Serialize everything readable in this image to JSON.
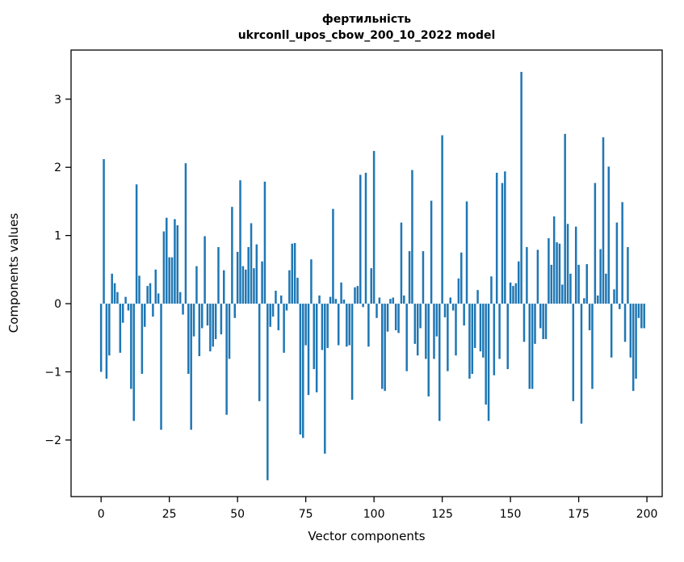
{
  "figure": {
    "title_line1": "фертильність",
    "title_line2": "ukrconll_upos_cbow_200_10_2022 model",
    "xlabel": "Vector components",
    "ylabel": "Components values"
  },
  "chart_data": {
    "type": "bar",
    "title": "фертильність\nukrconll_upos_cbow_200_10_2022 model",
    "xlabel": "Vector components",
    "ylabel": "Components values",
    "bar_color": "#1f77b4",
    "axis_color": "#000000",
    "background": "#ffffff",
    "legend": "none",
    "grid": false,
    "x_start_index": 0,
    "x_ticks": [
      0,
      25,
      50,
      75,
      100,
      125,
      150,
      175,
      200
    ],
    "y_ticks": [
      -2,
      -1,
      0,
      1,
      2,
      3
    ],
    "xlim": [
      -11,
      205.6
    ],
    "ylim": [
      -2.83,
      3.72
    ],
    "values": [
      -1.0,
      2.12,
      -1.1,
      -0.76,
      0.44,
      0.3,
      0.17,
      -0.72,
      -0.28,
      0.1,
      -0.1,
      -1.25,
      -1.72,
      1.75,
      0.41,
      -1.03,
      -0.34,
      0.26,
      0.3,
      -0.19,
      0.5,
      0.15,
      -1.85,
      1.06,
      1.26,
      0.68,
      0.68,
      1.24,
      1.15,
      0.17,
      -0.16,
      2.06,
      -1.03,
      -1.85,
      -0.48,
      0.55,
      -0.77,
      -0.36,
      0.99,
      -0.32,
      -0.7,
      -0.63,
      -0.52,
      0.83,
      -0.45,
      0.49,
      -1.63,
      -0.81,
      1.42,
      -0.21,
      0.76,
      1.81,
      0.55,
      0.5,
      0.83,
      1.18,
      0.52,
      0.87,
      -1.43,
      0.62,
      1.79,
      -2.59,
      -0.34,
      -0.19,
      0.19,
      -0.39,
      0.12,
      -0.72,
      -0.1,
      0.49,
      0.88,
      0.89,
      0.38,
      -1.92,
      -1.97,
      -0.61,
      -1.34,
      0.65,
      -0.96,
      -1.3,
      0.12,
      -0.68,
      -2.2,
      -0.65,
      0.1,
      1.39,
      0.07,
      -0.61,
      0.31,
      0.06,
      -0.63,
      -0.61,
      -1.41,
      0.24,
      0.26,
      1.89,
      -0.05,
      1.92,
      -0.63,
      0.52,
      2.24,
      -0.21,
      0.09,
      -1.25,
      -1.28,
      -0.41,
      0.07,
      0.09,
      -0.39,
      -0.43,
      1.19,
      0.12,
      -0.99,
      0.77,
      1.96,
      -0.59,
      -0.76,
      -0.36,
      0.77,
      -0.81,
      -1.36,
      1.51,
      -0.81,
      -0.48,
      -1.72,
      2.47,
      -0.2,
      -0.99,
      0.09,
      -0.1,
      -0.76,
      0.37,
      0.75,
      -0.32,
      1.5,
      -1.1,
      -1.03,
      -0.65,
      0.2,
      -0.7,
      -0.79,
      -1.48,
      -1.72,
      0.4,
      -1.05,
      1.92,
      -0.81,
      1.77,
      1.94,
      -0.96,
      0.31,
      0.26,
      0.3,
      0.62,
      3.4,
      -0.56,
      0.83,
      -1.25,
      -1.25,
      -0.59,
      0.79,
      -0.36,
      -0.52,
      -0.52,
      0.96,
      0.57,
      1.28,
      0.9,
      0.88,
      0.28,
      2.49,
      1.17,
      0.44,
      -1.43,
      1.13,
      0.57,
      -1.76,
      0.08,
      0.58,
      -0.39,
      -1.25,
      1.77,
      0.12,
      0.8,
      2.44,
      0.44,
      2.01,
      -0.79,
      0.21,
      1.19,
      -0.08,
      1.49,
      -0.56,
      0.83,
      -0.79,
      -1.28,
      -1.1,
      -0.21,
      -0.36,
      -0.36
    ]
  }
}
